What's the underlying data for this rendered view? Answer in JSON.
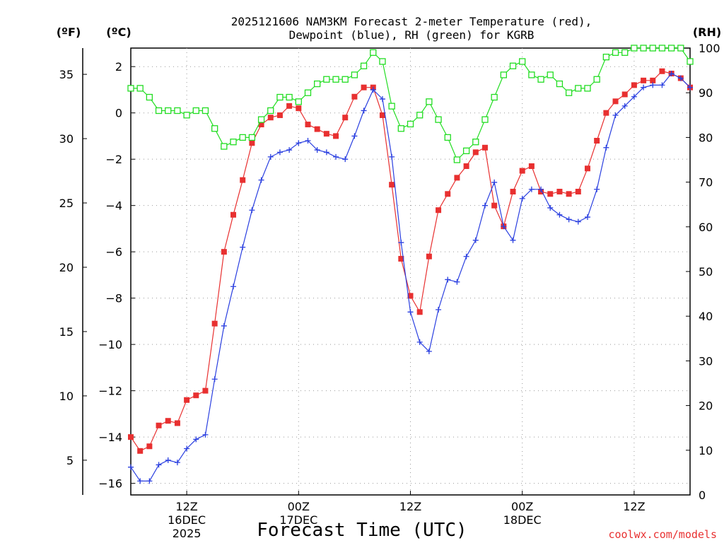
{
  "chart_data": {
    "type": "line",
    "title_line1": "2025121606 NAM3KM Forecast 2-meter Temperature (red),",
    "title_line2": "Dewpoint (blue), RH (green) for KGRB",
    "xlabel": "Forecast Time (UTC)",
    "credit": "coolwx.com/models",
    "units": {
      "fahrenheit": "(ºF)",
      "celsius": "(ºC)",
      "rh": "(RH)"
    },
    "x_range_hours": [
      0,
      60
    ],
    "x_ticks": [
      {
        "hour": 6,
        "label1": "12Z",
        "label2": "16DEC",
        "label3": "2025"
      },
      {
        "hour": 18,
        "label1": "00Z",
        "label2": "17DEC",
        "label3": ""
      },
      {
        "hour": 30,
        "label1": "12Z",
        "label2": "",
        "label3": ""
      },
      {
        "hour": 42,
        "label1": "00Z",
        "label2": "18DEC",
        "label3": ""
      },
      {
        "hour": 54,
        "label1": "12Z",
        "label2": "",
        "label3": ""
      }
    ],
    "y_left_celsius": {
      "range": [
        -16.5,
        2.8
      ],
      "ticks": [
        2,
        0,
        -2,
        -4,
        -6,
        -8,
        -10,
        -12,
        -14,
        -16
      ]
    },
    "y_left_fahrenheit": {
      "range": [
        2.3,
        37.04
      ],
      "ticks": [
        35,
        30,
        25,
        20,
        15,
        10,
        5
      ]
    },
    "y_right_rh": {
      "range": [
        0,
        100
      ],
      "ticks": [
        100,
        90,
        80,
        70,
        60,
        50,
        40,
        30,
        20,
        10,
        0
      ]
    },
    "grid": true,
    "series": [
      {
        "name": "Temperature",
        "color": "#e83030",
        "axis": "celsius",
        "marker": "square",
        "x": [
          0,
          1,
          2,
          3,
          4,
          5,
          6,
          7,
          8,
          9,
          10,
          11,
          12,
          13,
          14,
          15,
          16,
          17,
          18,
          19,
          20,
          21,
          22,
          23,
          24,
          25,
          26,
          27,
          28,
          29,
          30,
          31,
          32,
          33,
          34,
          35,
          36,
          37,
          38,
          39,
          40,
          41,
          42,
          43,
          44,
          45,
          46,
          47,
          48,
          49,
          50,
          51,
          52,
          53,
          54,
          55,
          56,
          57,
          58,
          59,
          60
        ],
        "values": [
          -14.0,
          -14.6,
          -14.4,
          -13.5,
          -13.3,
          -13.4,
          -12.4,
          -12.2,
          -12.0,
          -9.1,
          -6.0,
          -4.4,
          -2.9,
          -1.3,
          -0.5,
          -0.2,
          -0.1,
          0.3,
          0.2,
          -0.5,
          -0.7,
          -0.9,
          -1.0,
          -0.2,
          0.7,
          1.1,
          1.1,
          -0.1,
          -3.1,
          -6.3,
          -7.9,
          -8.6,
          -6.2,
          -4.2,
          -3.5,
          -2.8,
          -2.3,
          -1.7,
          -1.5,
          -4.0,
          -4.9,
          -3.4,
          -2.5,
          -2.3,
          -3.4,
          -3.5,
          -3.4,
          -3.5,
          -3.4,
          -2.4,
          -1.2,
          0.0,
          0.5,
          0.8,
          1.2,
          1.4,
          1.4,
          1.8,
          1.7,
          1.5,
          1.1
        ]
      },
      {
        "name": "Dewpoint",
        "color": "#2a3fe0",
        "axis": "celsius",
        "marker": "plus",
        "x": [
          0,
          1,
          2,
          3,
          4,
          5,
          6,
          7,
          8,
          9,
          10,
          11,
          12,
          13,
          14,
          15,
          16,
          17,
          18,
          19,
          20,
          21,
          22,
          23,
          24,
          25,
          26,
          27,
          28,
          29,
          30,
          31,
          32,
          33,
          34,
          35,
          36,
          37,
          38,
          39,
          40,
          41,
          42,
          43,
          44,
          45,
          46,
          47,
          48,
          49,
          50,
          51,
          52,
          53,
          54,
          55,
          56,
          57,
          58,
          59,
          60
        ],
        "values": [
          -15.3,
          -15.9,
          -15.9,
          -15.2,
          -15.0,
          -15.1,
          -14.5,
          -14.1,
          -13.9,
          -11.5,
          -9.2,
          -7.5,
          -5.8,
          -4.2,
          -2.9,
          -1.9,
          -1.7,
          -1.6,
          -1.3,
          -1.2,
          -1.6,
          -1.7,
          -1.9,
          -2.0,
          -1.0,
          0.1,
          1.0,
          0.6,
          -1.9,
          -5.6,
          -8.6,
          -9.9,
          -10.3,
          -8.5,
          -7.2,
          -7.3,
          -6.2,
          -5.5,
          -4.0,
          -3.0,
          -4.9,
          -5.5,
          -3.7,
          -3.3,
          -3.3,
          -4.1,
          -4.4,
          -4.6,
          -4.7,
          -4.5,
          -3.3,
          -1.5,
          -0.1,
          0.3,
          0.7,
          1.1,
          1.2,
          1.2,
          1.7,
          1.5,
          1.1
        ]
      },
      {
        "name": "RH",
        "color": "#22dd22",
        "axis": "rh",
        "marker": "open-square",
        "x": [
          0,
          1,
          2,
          3,
          4,
          5,
          6,
          7,
          8,
          9,
          10,
          11,
          12,
          13,
          14,
          15,
          16,
          17,
          18,
          19,
          20,
          21,
          22,
          23,
          24,
          25,
          26,
          27,
          28,
          29,
          30,
          31,
          32,
          33,
          34,
          35,
          36,
          37,
          38,
          39,
          40,
          41,
          42,
          43,
          44,
          45,
          46,
          47,
          48,
          49,
          50,
          51,
          52,
          53,
          54,
          55,
          56,
          57,
          58,
          59,
          60
        ],
        "values": [
          91,
          91,
          89,
          86,
          86,
          86,
          85,
          86,
          86,
          82,
          78,
          79,
          80,
          80,
          84,
          86,
          89,
          89,
          88,
          90,
          92,
          93,
          93,
          93,
          94,
          96,
          99,
          97,
          87,
          82,
          83,
          85,
          88,
          84,
          80,
          75,
          77,
          79,
          84,
          89,
          94,
          96,
          97,
          94,
          93,
          94,
          92,
          90,
          91,
          91,
          93,
          98,
          99,
          99,
          100,
          100,
          100,
          100,
          100,
          100,
          97
        ]
      }
    ]
  }
}
